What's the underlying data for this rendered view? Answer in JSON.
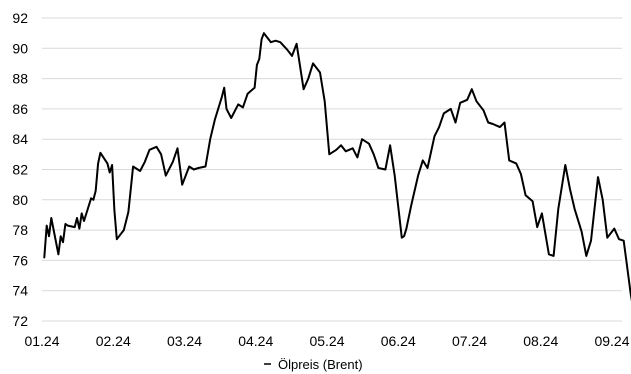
{
  "chart_data": {
    "type": "line",
    "title": "",
    "xlabel": "",
    "ylabel": "",
    "x_ticks": [
      "01.24",
      "02.24",
      "03.24",
      "04.24",
      "05.24",
      "06.24",
      "07.24",
      "08.24",
      "09.24"
    ],
    "ylim": [
      72,
      92
    ],
    "y_ticks": [
      72,
      74,
      76,
      78,
      80,
      82,
      84,
      86,
      88,
      90,
      92
    ],
    "grid": "horizontal",
    "legend": "bottom-center",
    "line_color": "#000000",
    "grid_color": "#d9d9d9",
    "series": [
      {
        "name": "Ölpreis (Brent)",
        "x": [
          "2024-01-02",
          "2024-01-03",
          "2024-01-04",
          "2024-01-05",
          "2024-01-08",
          "2024-01-09",
          "2024-01-10",
          "2024-01-11",
          "2024-01-12",
          "2024-01-15",
          "2024-01-16",
          "2024-01-17",
          "2024-01-18",
          "2024-01-19",
          "2024-01-22",
          "2024-01-23",
          "2024-01-24",
          "2024-01-25",
          "2024-01-26",
          "2024-01-29",
          "2024-01-30",
          "2024-01-31",
          "2024-02-01",
          "2024-02-02",
          "2024-02-05",
          "2024-02-07",
          "2024-02-09",
          "2024-02-12",
          "2024-02-14",
          "2024-02-16",
          "2024-02-19",
          "2024-02-21",
          "2024-02-23",
          "2024-02-26",
          "2024-02-28",
          "2024-03-01",
          "2024-03-04",
          "2024-03-06",
          "2024-03-08",
          "2024-03-11",
          "2024-03-13",
          "2024-03-15",
          "2024-03-18",
          "2024-03-19",
          "2024-03-20",
          "2024-03-22",
          "2024-03-25",
          "2024-03-27",
          "2024-03-29",
          "2024-04-01",
          "2024-04-02",
          "2024-04-03",
          "2024-04-04",
          "2024-04-05",
          "2024-04-08",
          "2024-04-10",
          "2024-04-12",
          "2024-04-15",
          "2024-04-17",
          "2024-04-19",
          "2024-04-22",
          "2024-04-24",
          "2024-04-26",
          "2024-04-29",
          "2024-05-01",
          "2024-05-03",
          "2024-05-06",
          "2024-05-08",
          "2024-05-10",
          "2024-05-13",
          "2024-05-15",
          "2024-05-17",
          "2024-05-20",
          "2024-05-22",
          "2024-05-24",
          "2024-05-27",
          "2024-05-29",
          "2024-05-31",
          "2024-06-03",
          "2024-06-04",
          "2024-06-05",
          "2024-06-07",
          "2024-06-10",
          "2024-06-12",
          "2024-06-14",
          "2024-06-17",
          "2024-06-19",
          "2024-06-21",
          "2024-06-24",
          "2024-06-26",
          "2024-06-28",
          "2024-07-01",
          "2024-07-03",
          "2024-07-05",
          "2024-07-08",
          "2024-07-10",
          "2024-07-12",
          "2024-07-15",
          "2024-07-17",
          "2024-07-19",
          "2024-07-22",
          "2024-07-24",
          "2024-07-26",
          "2024-07-29",
          "2024-07-31",
          "2024-08-02",
          "2024-08-05",
          "2024-08-07",
          "2024-08-09",
          "2024-08-12",
          "2024-08-14",
          "2024-08-16",
          "2024-08-19",
          "2024-08-21",
          "2024-08-23",
          "2024-08-26",
          "2024-08-28",
          "2024-08-30",
          "2024-09-02",
          "2024-09-04",
          "2024-09-06",
          "2024-09-09",
          "2024-09-10",
          "2024-09-11",
          "2024-09-12"
        ],
        "values": [
          76.2,
          78.3,
          77.6,
          78.8,
          76.4,
          77.6,
          77.2,
          78.4,
          78.3,
          78.2,
          78.8,
          78.1,
          79.1,
          78.6,
          80.1,
          80.0,
          80.6,
          82.4,
          83.1,
          82.4,
          81.8,
          82.3,
          79.3,
          77.4,
          78.0,
          79.2,
          82.2,
          81.9,
          82.5,
          83.3,
          83.5,
          83.0,
          81.6,
          82.5,
          83.4,
          81.0,
          82.2,
          82.0,
          82.1,
          82.2,
          84.0,
          85.3,
          86.8,
          87.4,
          86.0,
          85.4,
          86.3,
          86.1,
          87.0,
          87.4,
          88.9,
          89.3,
          90.6,
          91.0,
          90.4,
          90.5,
          90.4,
          89.9,
          89.5,
          90.3,
          87.3,
          88.0,
          89.0,
          88.4,
          86.5,
          83.0,
          83.3,
          83.6,
          83.2,
          83.4,
          82.8,
          84.0,
          83.7,
          83.0,
          82.1,
          82.0,
          83.6,
          81.6,
          77.5,
          77.6,
          78.1,
          79.6,
          81.6,
          82.6,
          82.1,
          84.2,
          84.8,
          85.7,
          86.0,
          85.1,
          86.4,
          86.6,
          87.3,
          86.5,
          85.9,
          85.1,
          85.0,
          84.8,
          85.1,
          82.6,
          82.4,
          81.7,
          80.3,
          79.9,
          78.2,
          79.1,
          76.4,
          76.3,
          79.4,
          82.3,
          80.7,
          79.4,
          77.9,
          76.3,
          77.3,
          81.5,
          80.0,
          77.5,
          78.1,
          77.4,
          77.3,
          73.8,
          72.9,
          72.9,
          72.9
        ]
      }
    ]
  }
}
